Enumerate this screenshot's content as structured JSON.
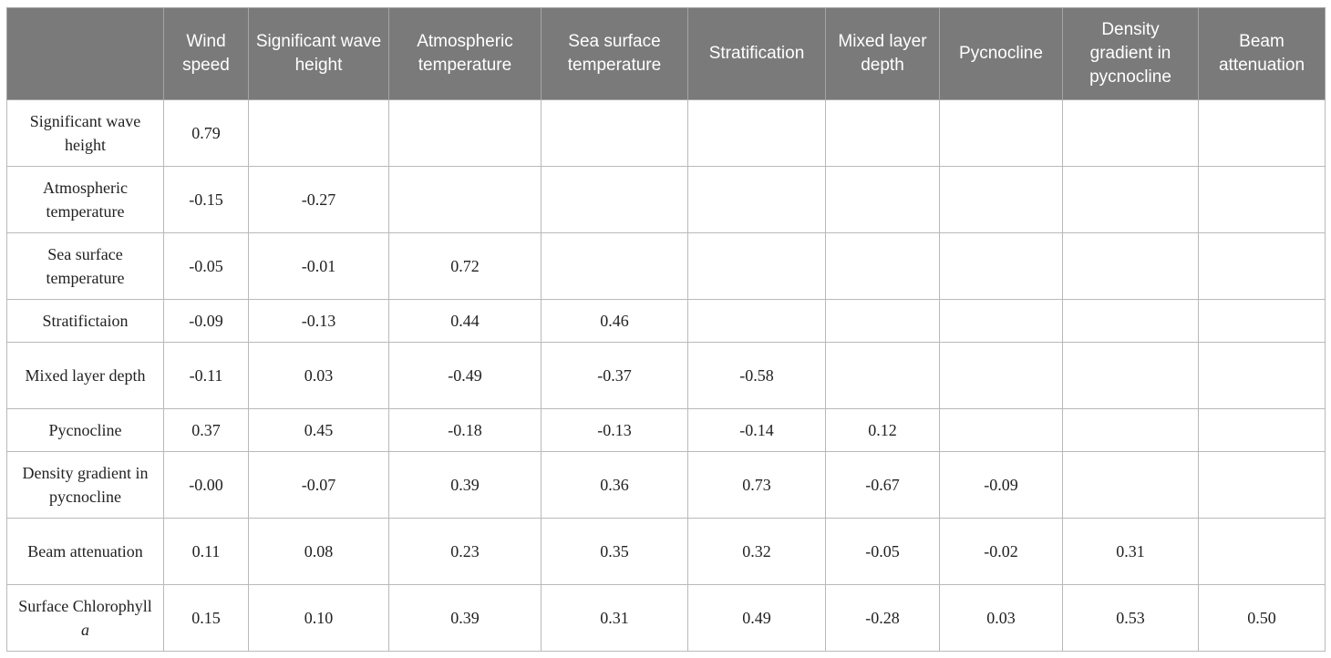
{
  "table": {
    "columns": [
      "",
      "Wind speed",
      "Significant wave height",
      "Atmospheric temperature",
      "Sea surface temperature",
      "Stratification",
      "Mixed layer depth",
      "Pycnocline",
      "Density gradient in pycnocline",
      "Beam attenuation"
    ],
    "rows": [
      {
        "label": "Significant wave height",
        "values": [
          "0.79",
          "",
          "",
          "",
          "",
          "",
          "",
          "",
          ""
        ]
      },
      {
        "label": "Atmospheric temperature",
        "values": [
          "-0.15",
          "-0.27",
          "",
          "",
          "",
          "",
          "",
          "",
          ""
        ]
      },
      {
        "label": "Sea surface temperature",
        "values": [
          "-0.05",
          "-0.01",
          "0.72",
          "",
          "",
          "",
          "",
          "",
          ""
        ]
      },
      {
        "label": "Stratifictaion",
        "values": [
          "-0.09",
          "-0.13",
          "0.44",
          "0.46",
          "",
          "",
          "",
          "",
          ""
        ]
      },
      {
        "label": "Mixed layer depth",
        "values": [
          "-0.11",
          "0.03",
          "-0.49",
          "-0.37",
          "-0.58",
          "",
          "",
          "",
          ""
        ]
      },
      {
        "label": "Pycnocline",
        "values": [
          "0.37",
          "0.45",
          "-0.18",
          "-0.13",
          "-0.14",
          "0.12",
          "",
          "",
          ""
        ]
      },
      {
        "label": "Density gradient in pycnocline",
        "values": [
          "-0.00",
          "-0.07",
          "0.39",
          "0.36",
          "0.73",
          "-0.67",
          "-0.09",
          "",
          ""
        ]
      },
      {
        "label": "Beam attenuation",
        "values": [
          "0.11",
          "0.08",
          "0.23",
          "0.35",
          "0.32",
          "-0.05",
          "-0.02",
          "0.31",
          ""
        ]
      },
      {
        "label": "Surface Chlorophyll",
        "label_italic": "a",
        "values": [
          "0.15",
          "0.10",
          "0.39",
          "0.31",
          "0.49",
          "-0.28",
          "0.03",
          "0.53",
          "0.50"
        ]
      }
    ]
  }
}
